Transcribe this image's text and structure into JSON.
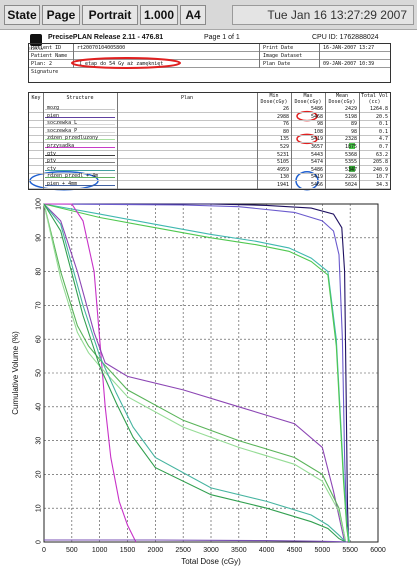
{
  "toolbar": {
    "buttons": [
      "State",
      "Page",
      "Portrait",
      "1.000",
      "A4"
    ],
    "datetime": "Tue Jan 16 13:27:29 2007"
  },
  "report": {
    "title": "PrecisePLAN Release 2.11 - 476.81",
    "page": "Page 1 of 1",
    "cpu_id": "CPU ID: 1762888024",
    "logo_text": "ELEKTA",
    "patient": {
      "id_label": "Patient ID",
      "id_value": "rt20070104005800",
      "name_label": "Patient Name",
      "name_value": "",
      "plan_label": "Plan: 2",
      "plan_value": "I etap do 54 Gy aż zamęknięt",
      "signature_label": "Signature",
      "print_date_label": "Print Date",
      "print_date_value": "16-JAN-2007 13:27",
      "image_dataset_label": "Image Dataset",
      "image_dataset_value": "",
      "plan_date_label": "Plan Date",
      "plan_date_value": "09-JAN-2007 10:39"
    },
    "highlight_color": "#e02020",
    "highlight_color_blue": "#2060d0"
  },
  "structures": {
    "headers": {
      "key": "Key",
      "structure": "Structure",
      "plan": "Plan",
      "min": "Min Dose(cGy)",
      "max": "Max Dose(cGy)",
      "mean": "Mean Dose(cGy)",
      "vol": "Total Vol (cc)"
    },
    "rows": [
      {
        "name": "mozg",
        "min": "26",
        "max": "5486",
        "mean": "2429",
        "vol": "1264.8",
        "color": "#c8c8c8"
      },
      {
        "name": "pien",
        "min": "2988",
        "max": "5468",
        "mean": "5198",
        "vol": "20.5",
        "color": "#6040a0"
      },
      {
        "name": "soczewka L",
        "min": "76",
        "max": "98",
        "mean": "89",
        "vol": "0.1",
        "color": "#d8d8d8"
      },
      {
        "name": "soczewka P",
        "min": "80",
        "max": "108",
        "mean": "98",
        "vol": "0.1",
        "color": "#d8d8d8"
      },
      {
        "name": "zdzen przedluzony",
        "min": "135",
        "max": "5419",
        "mean": "2328",
        "vol": "4.7",
        "color": "#a8e0a0"
      },
      {
        "name": "przysadka",
        "min": "529",
        "max": "3657",
        "mean": "1875",
        "vol": "0.7",
        "color": "#c83cc8"
      },
      {
        "name": "gtv",
        "min": "5231",
        "max": "5443",
        "mean": "5368",
        "vol": "63.2",
        "color": "#404040"
      },
      {
        "name": "ptv",
        "min": "5105",
        "max": "5474",
        "mean": "5355",
        "vol": "205.8",
        "color": "#808080"
      },
      {
        "name": "ctv",
        "min": "4959",
        "max": "5486",
        "mean": "5347",
        "vol": "240.9",
        "color": "#40a0a0"
      },
      {
        "name": "rdzen przedl + 4m",
        "min": "130",
        "max": "5419",
        "mean": "2286",
        "vol": "10.7",
        "color": "#60b060"
      },
      {
        "name": "pien + 4mm",
        "min": "1941",
        "max": "5466",
        "mean": "5024",
        "vol": "34.3",
        "color": "#4060a0"
      }
    ]
  },
  "chart_data": {
    "type": "line",
    "title": "",
    "xlabel": "Total Dose (cGy)",
    "ylabel": "Cumulative Volume (%)",
    "xlim": [
      0,
      6000
    ],
    "ylim": [
      0,
      100
    ],
    "xticks": [
      0,
      500,
      1000,
      1500,
      2000,
      2500,
      3000,
      3500,
      4000,
      4500,
      5000,
      5500,
      6000
    ],
    "yticks": [
      0,
      10,
      20,
      30,
      40,
      50,
      60,
      70,
      80,
      90,
      100
    ],
    "grid": true,
    "series": [
      {
        "color": "#1e1060",
        "x": [
          0,
          2000,
          3000,
          4000,
          4800,
          5200,
          5350,
          5400,
          5430,
          5450,
          5470
        ],
        "y": [
          100,
          100,
          100,
          99.6,
          98.8,
          97,
          93,
          80,
          40,
          12,
          0
        ]
      },
      {
        "color": "#6a5acd",
        "x": [
          0,
          2500,
          3500,
          4500,
          5000,
          5200,
          5300,
          5360,
          5400,
          5440,
          5470
        ],
        "y": [
          100,
          99.7,
          99.2,
          97.5,
          95,
          92,
          85,
          60,
          25,
          5,
          0
        ]
      },
      {
        "color": "#40b8b0",
        "x": [
          0,
          1000,
          2000,
          3000,
          3800,
          4400,
          4800,
          5100,
          5250,
          5380,
          5440,
          5486
        ],
        "y": [
          100,
          97,
          94,
          91,
          89,
          87,
          84,
          80,
          60,
          20,
          5,
          0
        ]
      },
      {
        "color": "#50c850",
        "x": [
          0,
          1000,
          2000,
          3000,
          3800,
          4400,
          4800,
          5100,
          5250,
          5380,
          5440,
          5474
        ],
        "y": [
          100,
          96,
          93,
          90,
          88,
          86,
          83,
          79,
          58,
          18,
          4,
          0
        ]
      },
      {
        "color": "#c832c8",
        "x": [
          0,
          500,
          700,
          900,
          1000,
          1100,
          1200,
          1350,
          1500,
          1650
        ],
        "y": [
          100,
          100,
          95,
          80,
          60,
          40,
          25,
          12,
          5,
          0
        ]
      },
      {
        "color": "#8c46b4",
        "x": [
          0,
          300,
          600,
          900,
          1100,
          1500,
          2500,
          3500,
          4500,
          5000,
          5200,
          5400
        ],
        "y": [
          100,
          95,
          80,
          62,
          53,
          49,
          45,
          40,
          35,
          28,
          15,
          0
        ]
      },
      {
        "color": "#5ab45a",
        "x": [
          0,
          300,
          600,
          800,
          1000,
          1500,
          2500,
          3500,
          4500,
          5000,
          5300,
          5419
        ],
        "y": [
          100,
          80,
          64,
          58,
          54,
          45,
          36,
          30,
          25,
          20,
          10,
          0
        ]
      },
      {
        "color": "#96dc96",
        "x": [
          0,
          300,
          600,
          800,
          1000,
          1500,
          2500,
          3500,
          4500,
          5000,
          5300,
          5419
        ],
        "y": [
          100,
          78,
          62,
          56,
          52,
          43,
          34,
          28,
          23,
          18,
          9,
          0
        ]
      },
      {
        "color": "#46b4a0",
        "x": [
          0,
          300,
          700,
          1000,
          1300,
          1600,
          2000,
          3000,
          4000,
          4800,
          5100,
          5300,
          5419
        ],
        "y": [
          100,
          94,
          70,
          55,
          44,
          34,
          25,
          16,
          12,
          8,
          5,
          2,
          0
        ]
      },
      {
        "color": "#32a050",
        "x": [
          0,
          300,
          700,
          1000,
          1300,
          1600,
          2000,
          3000,
          4000,
          4800,
          5100,
          5300,
          5419
        ],
        "y": [
          100,
          92,
          67,
          52,
          41,
          31,
          22,
          14,
          10,
          6,
          4,
          1,
          0
        ]
      },
      {
        "color": "#7850b4",
        "x": [
          0,
          1000,
          2000,
          3000,
          4000,
          5000,
          5300,
          5450
        ],
        "y": [
          0.6,
          0.6,
          0.6,
          0.5,
          0.4,
          0.2,
          0.1,
          0
        ]
      }
    ]
  }
}
